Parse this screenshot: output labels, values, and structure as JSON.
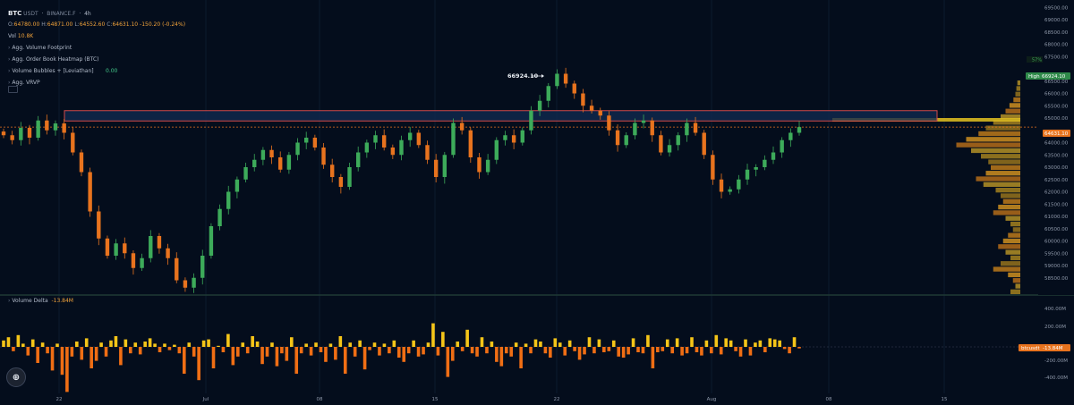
{
  "header": {
    "symbol": "BTC",
    "quote": "USDT",
    "exchange": "BINANCE.F",
    "interval": "4h"
  },
  "ohlc": {
    "o_label": "O:",
    "o": "64780.00",
    "h_label": "H:",
    "h": "64871.00",
    "l_label": "L:",
    "l": "64552.60",
    "c_label": "C:",
    "c": "64631.10",
    "change": "-150.20",
    "change_pct": "(-0.24%)"
  },
  "volume": {
    "label": "Vol",
    "value": "10.8K"
  },
  "indicators": [
    {
      "name": "Agg. Volume Footprint"
    },
    {
      "name": "Agg. Order Book Heatmap (BTC)"
    },
    {
      "name": "Volume Bubbles + [Leviathan]",
      "value": "0.00"
    },
    {
      "name": "Agg. VRVP"
    }
  ],
  "price_axis": {
    "ticks": [
      "69500.00",
      "69000.00",
      "68500.00",
      "68000.00",
      "67500.00",
      "66500.00",
      "66000.00",
      "65500.00",
      "65000.00",
      "64000.00",
      "63500.00",
      "63000.00",
      "62500.00",
      "62000.00",
      "61500.00",
      "61000.00",
      "60500.00",
      "60000.00",
      "59500.00",
      "59000.00",
      "58500.00"
    ],
    "high_label": "High",
    "high_value": "66924.10",
    "current_value": "64631.10",
    "percent_badge": "57%"
  },
  "annotation": {
    "peak_price": "66924.10"
  },
  "delta_pane": {
    "title": "Volume Delta",
    "value": "-13.84M",
    "tag_label": "btcusdt",
    "tag_value": "-13.84M",
    "ticks": [
      "400.00M",
      "200.00M",
      "-200.00M",
      "-400.00M"
    ]
  },
  "time_axis": {
    "labels": [
      "22",
      "Jul",
      "08",
      "15",
      "22",
      "Aug",
      "08",
      "15"
    ]
  },
  "colors": {
    "background": "#040d1c",
    "bull": "#3dab5a",
    "bear": "#e8731e",
    "zone_fill": "#10294f",
    "zone_border": "#d24a4a",
    "delta_positive": "#f5c518",
    "delta_negative": "#f06e14",
    "high_badge": "#2f8a4a",
    "current_badge": "#e8731e"
  },
  "chart_data": {
    "type": "candlestick",
    "price_range": [
      57800,
      69800
    ],
    "zone": {
      "top": 65300,
      "bottom": 64880
    },
    "current_price": 64631.1,
    "peak_price": 66924.1,
    "close_series": [
      64300,
      64100,
      64600,
      64200,
      64900,
      64500,
      64780,
      64400,
      63600,
      62800,
      61200,
      60100,
      59400,
      59900,
      59500,
      58900,
      59300,
      60200,
      59700,
      59300,
      58400,
      58100,
      58500,
      59400,
      60600,
      61300,
      62000,
      62500,
      63000,
      63300,
      63700,
      63400,
      62900,
      63500,
      64000,
      64200,
      63800,
      63100,
      62600,
      62200,
      63000,
      63600,
      64000,
      64300,
      63800,
      63500,
      64100,
      64400,
      63900,
      63300,
      62600,
      63500,
      64800,
      64500,
      63400,
      62800,
      63300,
      64100,
      64300,
      64000,
      64500,
      65300,
      65700,
      66300,
      66800,
      66400,
      66000,
      65500,
      65300,
      65100,
      64500,
      63900,
      64300,
      64800,
      64900,
      64300,
      63600,
      63900,
      64300,
      64800,
      64400,
      63500,
      62500,
      62000,
      62100,
      62500,
      62900,
      63000,
      63300,
      63600,
      64100,
      64400,
      64631
    ],
    "delta_series": [
      60,
      90,
      -40,
      110,
      30,
      -80,
      70,
      -150,
      40,
      -60,
      -220,
      30,
      -260,
      -420,
      -90,
      50,
      -120,
      80,
      -200,
      -130,
      40,
      -90,
      60,
      100,
      -170,
      70,
      -60,
      40,
      -70,
      50,
      80,
      30,
      -50,
      30,
      -30,
      20,
      -60,
      -250,
      40,
      -90,
      -310,
      60,
      70,
      -200,
      10,
      -50,
      120,
      -170,
      -90,
      40,
      -60,
      100,
      50,
      -160,
      -90,
      40,
      -180,
      -60,
      -130,
      90,
      -250,
      -60,
      30,
      -80,
      40,
      -50,
      -140,
      30,
      -120,
      100,
      -250,
      40,
      -90,
      60,
      -210,
      -30,
      40,
      -80,
      30,
      -60,
      60,
      -100,
      -140,
      -60,
      60,
      -90,
      -70,
      40,
      220,
      -80,
      140,
      -280,
      -130,
      50,
      -40,
      160,
      -60,
      -90,
      90,
      -60,
      50,
      -140,
      -180,
      -60,
      -90,
      40,
      -200,
      30,
      -60,
      70,
      50,
      -60,
      -100,
      80,
      40,
      -80,
      60,
      -40,
      -120,
      -70,
      90,
      -60,
      70,
      -50,
      -40,
      60,
      -90,
      -100,
      -70,
      80,
      -50,
      -60,
      110,
      -200,
      -50,
      -40,
      70,
      -60,
      80,
      -80,
      -60,
      90,
      -50,
      -80,
      60,
      -60,
      110,
      -70,
      80,
      60,
      -40,
      -90,
      70,
      -80,
      40,
      60,
      -50,
      80,
      70,
      60,
      -20,
      -60,
      90,
      -14
    ]
  }
}
